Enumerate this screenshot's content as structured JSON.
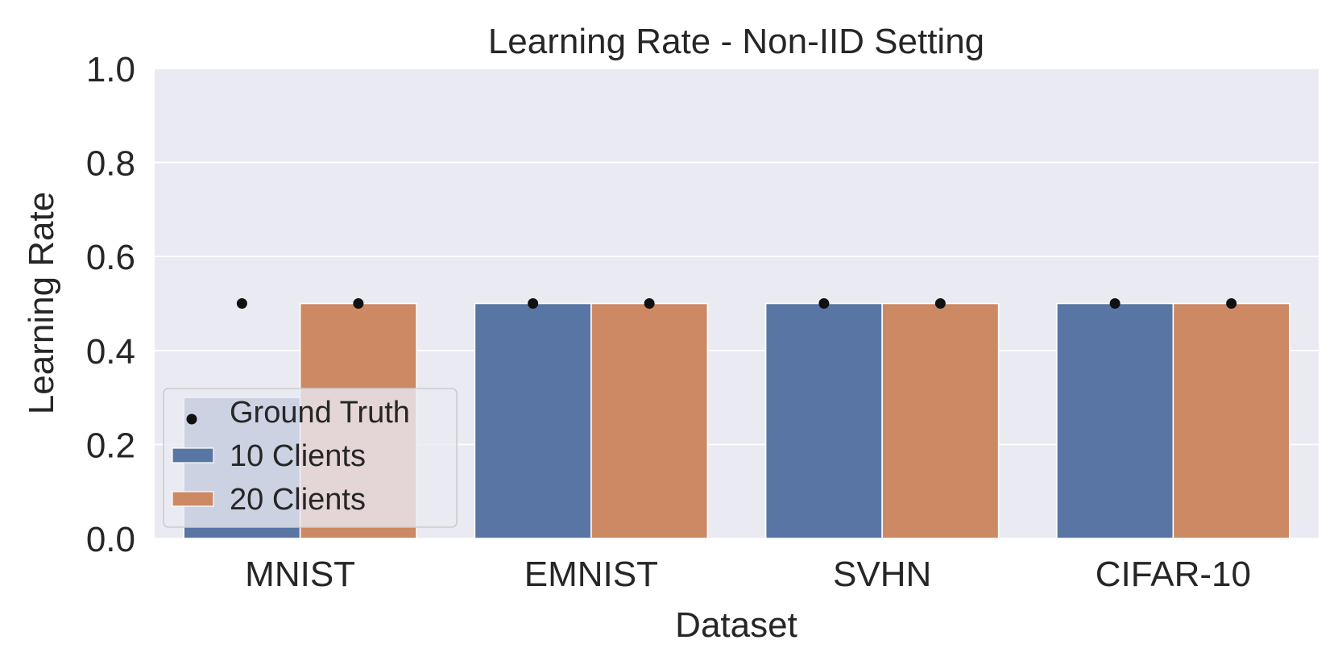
{
  "chart_data": {
    "type": "bar",
    "title": "Learning Rate - Non-IID Setting",
    "xlabel": "Dataset",
    "ylabel": "Learning Rate",
    "categories": [
      "MNIST",
      "EMNIST",
      "SVHN",
      "CIFAR-10"
    ],
    "series": [
      {
        "name": "10 Clients",
        "values": [
          0.3,
          0.5,
          0.5,
          0.5
        ],
        "color": "#5975a4"
      },
      {
        "name": "20 Clients",
        "values": [
          0.5,
          0.5,
          0.5,
          0.5
        ],
        "color": "#cc8963"
      }
    ],
    "ground_truth": {
      "name": "Ground Truth",
      "values": [
        [
          0.5,
          0.5
        ],
        [
          0.5,
          0.5
        ],
        [
          0.5,
          0.5
        ],
        [
          0.5,
          0.5
        ]
      ],
      "color": "#111111"
    },
    "ylim": [
      0,
      1.0
    ],
    "yticks": [
      "0.0",
      "0.2",
      "0.4",
      "0.6",
      "0.8",
      "1.0"
    ],
    "legend_position": "lower-left",
    "grid": true,
    "background": "#eaeaf2",
    "grid_color": "#ffffff"
  }
}
